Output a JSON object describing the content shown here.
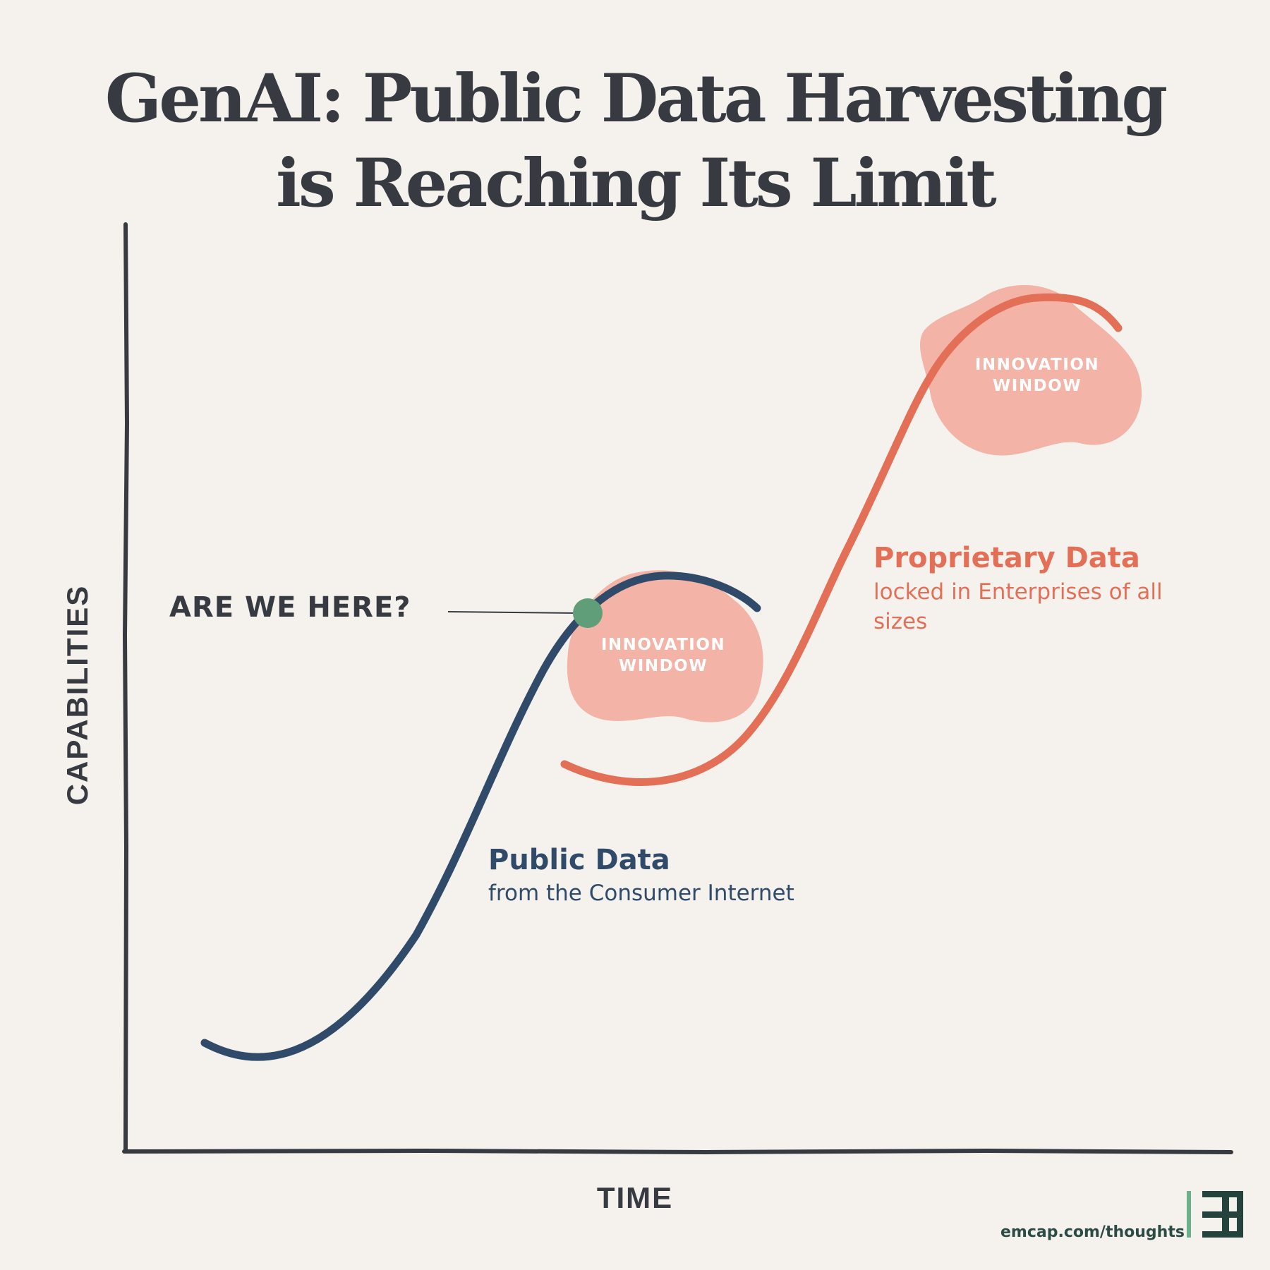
{
  "title": {
    "line1": "GenAI: Public Data Harvesting",
    "line2": "is Reaching Its Limit"
  },
  "axes": {
    "y_label": "CAPABILITIES",
    "x_label": "TIME"
  },
  "marker": {
    "label": "ARE WE HERE?",
    "color": "#5f9e78"
  },
  "innovation_windows": [
    {
      "line1": "INNOVATION",
      "line2": "WINDOW"
    },
    {
      "line1": "INNOVATION",
      "line2": "WINDOW"
    }
  ],
  "curves": {
    "public": {
      "heading": "Public Data",
      "subtext": "from the Consumer Internet",
      "color": "#304a69"
    },
    "proprietary": {
      "heading": "Proprietary Data",
      "subtext": "locked in Enterprises of all sizes",
      "color": "#e46f57"
    }
  },
  "colors": {
    "background": "#f5f2ed",
    "ink": "#373a40",
    "blob": "#f3b3a6"
  },
  "footer": {
    "url": "emcap.com/thoughts"
  }
}
